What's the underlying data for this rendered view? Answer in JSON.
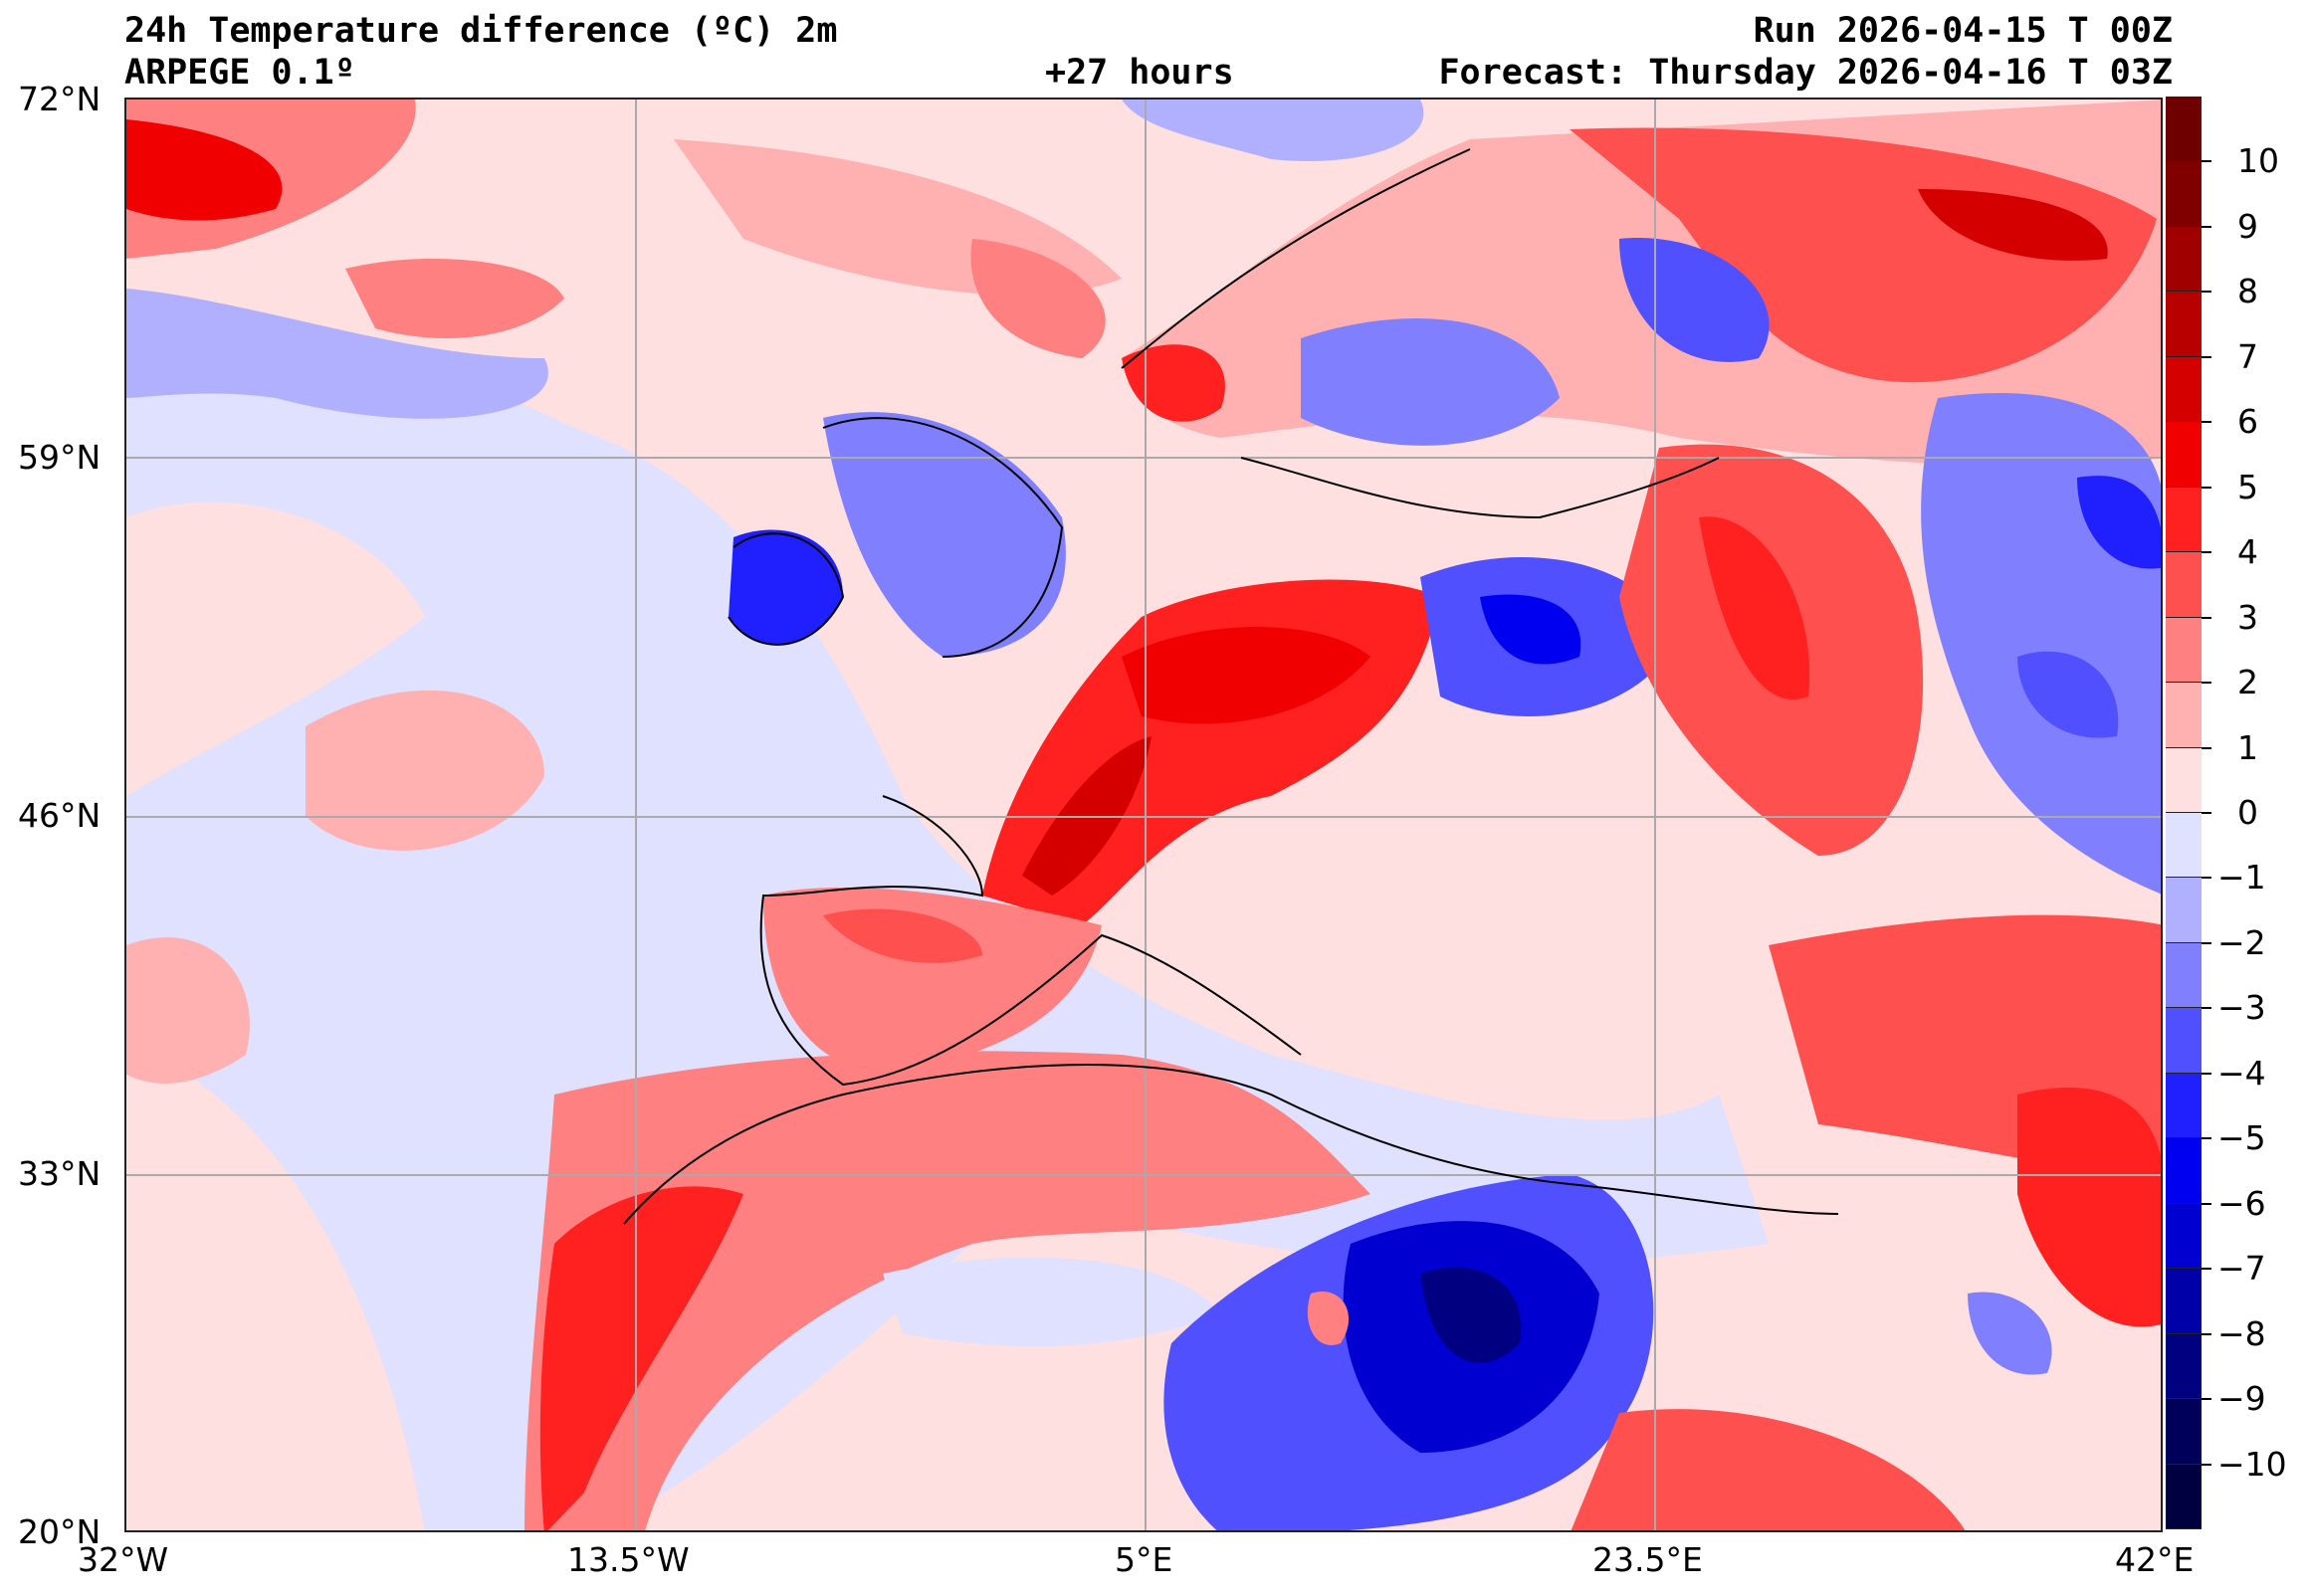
{
  "header": {
    "title": "24h Temperature difference (ºC) 2m",
    "model": "ARPEGE 0.1º",
    "lead_time": "+27 hours",
    "run": "Run 2026-04-15 T 00Z",
    "forecast": "Forecast: Thursday 2026-04-16 T 03Z"
  },
  "axes": {
    "lat_ticks": [
      "72°N",
      "59°N",
      "46°N",
      "33°N",
      "20°N"
    ],
    "lon_ticks": [
      "32°W",
      "13.5°W",
      "5°E",
      "23.5°E",
      "42°E"
    ]
  },
  "colorbar": {
    "labels": [
      "10",
      "9",
      "8",
      "7",
      "6",
      "5",
      "4",
      "3",
      "2",
      "1",
      "0",
      "−1",
      "−2",
      "−3",
      "−4",
      "−5",
      "−6",
      "−7",
      "−8",
      "−9",
      "−10"
    ],
    "colors": [
      "#6e0000",
      "#800000",
      "#a00000",
      "#b80000",
      "#d40000",
      "#f00000",
      "#ff2020",
      "#ff5050",
      "#ff8080",
      "#ffb0b0",
      "#ffe0e0",
      "#e0e0ff",
      "#b0b0ff",
      "#8080ff",
      "#5050ff",
      "#2020ff",
      "#0000f0",
      "#0000d0",
      "#0000a8",
      "#000080",
      "#00005a",
      "#000040"
    ]
  }
}
